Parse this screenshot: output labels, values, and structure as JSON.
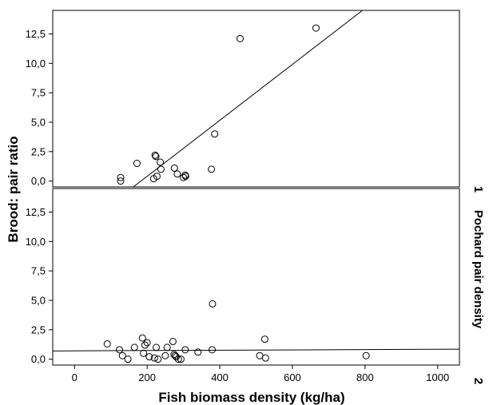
{
  "chart_data": {
    "type": "scatter",
    "xlabel": "Fish biomass density (kg/ha)",
    "ylabel": "Brood: pair ratio",
    "facet_label": "Pochard pair density",
    "x_ticks": [
      "0",
      "200",
      "400",
      "600",
      "800",
      "1000"
    ],
    "y_ticks": [
      "0,0",
      "2,5",
      "5,0",
      "7,5",
      "10,0",
      "12,5"
    ],
    "xlim": [
      -60,
      1060
    ],
    "ylim": [
      -0.5,
      14.5
    ],
    "grid": false,
    "panels": [
      {
        "label": "1",
        "points": [
          [
            127,
            0.3
          ],
          [
            127,
            0.0
          ],
          [
            172,
            1.5
          ],
          [
            218,
            0.2
          ],
          [
            222,
            2.2
          ],
          [
            224,
            2.1
          ],
          [
            227,
            0.4
          ],
          [
            236,
            1.6
          ],
          [
            238,
            1.0
          ],
          [
            275,
            1.1
          ],
          [
            283,
            0.6
          ],
          [
            300,
            0.3
          ],
          [
            305,
            0.5
          ],
          [
            306,
            0.4
          ],
          [
            377,
            1.0
          ],
          [
            386,
            4.0
          ],
          [
            456,
            12.1
          ],
          [
            665,
            13.0
          ]
        ],
        "fit_line": {
          "x": [
            162,
            793
          ],
          "y": [
            -0.5,
            14.5
          ]
        }
      },
      {
        "label": "2",
        "points": [
          [
            90,
            1.3
          ],
          [
            124,
            0.8
          ],
          [
            132,
            0.3
          ],
          [
            147,
            0.0
          ],
          [
            165,
            1.0
          ],
          [
            187,
            1.8
          ],
          [
            190,
            0.5
          ],
          [
            194,
            1.2
          ],
          [
            200,
            1.4
          ],
          [
            206,
            0.2
          ],
          [
            220,
            0.1
          ],
          [
            225,
            1.0
          ],
          [
            230,
            0.0
          ],
          [
            250,
            0.3
          ],
          [
            255,
            1.0
          ],
          [
            271,
            1.5
          ],
          [
            274,
            0.4
          ],
          [
            277,
            0.3
          ],
          [
            280,
            0.2
          ],
          [
            286,
            0.0
          ],
          [
            293,
            0.0
          ],
          [
            305,
            0.8
          ],
          [
            340,
            0.6
          ],
          [
            379,
            0.8
          ],
          [
            380,
            4.7
          ],
          [
            510,
            0.3
          ],
          [
            524,
            1.7
          ],
          [
            526,
            0.1
          ],
          [
            803,
            0.3
          ]
        ],
        "fit_line": {
          "x": [
            -60,
            1060
          ],
          "y": [
            0.7,
            0.85
          ]
        }
      }
    ]
  }
}
